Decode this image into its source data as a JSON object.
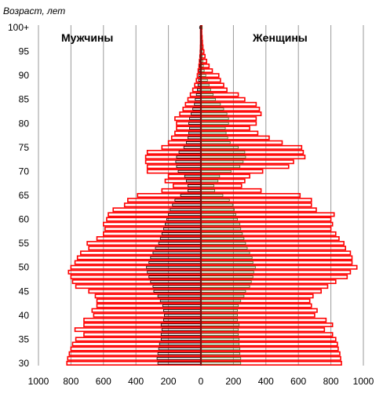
{
  "chart_data": {
    "type": "bar",
    "subtype": "population-pyramid",
    "ylabel": "Возраст, лет",
    "left_label": "Мужчины",
    "right_label": "Женщины",
    "x_ticks": [
      "1000",
      "800",
      "600",
      "400",
      "200",
      "0",
      "200",
      "400",
      "600",
      "800",
      "1000"
    ],
    "xlim": [
      -1000,
      1000
    ],
    "y_ticks": [
      {
        "age": 30,
        "label": "30"
      },
      {
        "age": 35,
        "label": "35"
      },
      {
        "age": 40,
        "label": "40"
      },
      {
        "age": 45,
        "label": "45"
      },
      {
        "age": 50,
        "label": "50"
      },
      {
        "age": 55,
        "label": "55"
      },
      {
        "age": 60,
        "label": "60"
      },
      {
        "age": 65,
        "label": "65"
      },
      {
        "age": 70,
        "label": "70"
      },
      {
        "age": 75,
        "label": "75"
      },
      {
        "age": 80,
        "label": "80"
      },
      {
        "age": 85,
        "label": "85"
      },
      {
        "age": 90,
        "label": "90"
      },
      {
        "age": 95,
        "label": "95"
      },
      {
        "age": 100,
        "label": "100+"
      }
    ],
    "ages": [
      30,
      31,
      32,
      33,
      34,
      35,
      36,
      37,
      38,
      39,
      40,
      41,
      42,
      43,
      44,
      45,
      46,
      47,
      48,
      49,
      50,
      51,
      52,
      53,
      54,
      55,
      56,
      57,
      58,
      59,
      60,
      61,
      62,
      63,
      64,
      65,
      66,
      67,
      68,
      69,
      70,
      71,
      72,
      73,
      74,
      75,
      76,
      77,
      78,
      79,
      80,
      81,
      82,
      83,
      84,
      85,
      86,
      87,
      88,
      89,
      90,
      91,
      92,
      93,
      94,
      95,
      96,
      97,
      98,
      99,
      100
    ],
    "series": [
      {
        "name": "Мужчины",
        "color": "#ff0000",
        "values": [
          825,
          820,
          810,
          800,
          790,
          770,
          720,
          775,
          720,
          720,
          660,
          670,
          640,
          640,
          650,
          690,
          770,
          790,
          800,
          815,
          800,
          775,
          760,
          740,
          690,
          700,
          640,
          600,
          590,
          600,
          580,
          570,
          540,
          470,
          450,
          390,
          240,
          170,
          220,
          200,
          330,
          330,
          340,
          340,
          330,
          240,
          200,
          180,
          160,
          150,
          150,
          160,
          130,
          110,
          95,
          80,
          65,
          50,
          38,
          28,
          22,
          17,
          12,
          9,
          6,
          4,
          3,
          2,
          2,
          2,
          2
        ]
      },
      {
        "name": "Женщины",
        "color": "#ff0000",
        "values": [
          865,
          860,
          855,
          845,
          840,
          830,
          810,
          760,
          810,
          770,
          700,
          715,
          680,
          670,
          690,
          740,
          780,
          830,
          900,
          920,
          960,
          930,
          930,
          920,
          890,
          880,
          850,
          830,
          800,
          810,
          800,
          820,
          710,
          680,
          680,
          610,
          370,
          250,
          270,
          300,
          380,
          540,
          570,
          640,
          630,
          620,
          500,
          420,
          350,
          300,
          340,
          340,
          370,
          360,
          340,
          270,
          230,
          160,
          140,
          120,
          110,
          70,
          50,
          35,
          25,
          18,
          12,
          9,
          7,
          5,
          6
        ]
      },
      {
        "name": "Мужчины (1)",
        "color": "#000000",
        "values": [
          265,
          270,
          265,
          260,
          255,
          245,
          245,
          240,
          245,
          230,
          225,
          230,
          235,
          250,
          265,
          290,
          295,
          310,
          320,
          330,
          335,
          320,
          310,
          295,
          280,
          260,
          250,
          240,
          230,
          220,
          210,
          200,
          190,
          175,
          160,
          125,
          80,
          80,
          90,
          100,
          140,
          150,
          155,
          150,
          135,
          105,
          90,
          80,
          75,
          70,
          75,
          70,
          60,
          50,
          40,
          35,
          28,
          22,
          18,
          14,
          12,
          10,
          8,
          6,
          5,
          4,
          3,
          3,
          2,
          2,
          8
        ]
      },
      {
        "name": "Женщины (1)",
        "color": "#3a6b2a",
        "values": [
          245,
          245,
          240,
          240,
          235,
          235,
          230,
          230,
          235,
          225,
          225,
          225,
          230,
          245,
          265,
          275,
          300,
          310,
          320,
          325,
          335,
          320,
          315,
          300,
          285,
          275,
          265,
          255,
          245,
          240,
          225,
          215,
          205,
          195,
          175,
          135,
          85,
          80,
          105,
          115,
          185,
          240,
          260,
          275,
          270,
          230,
          180,
          165,
          155,
          150,
          170,
          170,
          160,
          140,
          120,
          90,
          75,
          60,
          50,
          40,
          30,
          20,
          15,
          12,
          9,
          7,
          5,
          4,
          3,
          3,
          8
        ]
      }
    ]
  }
}
